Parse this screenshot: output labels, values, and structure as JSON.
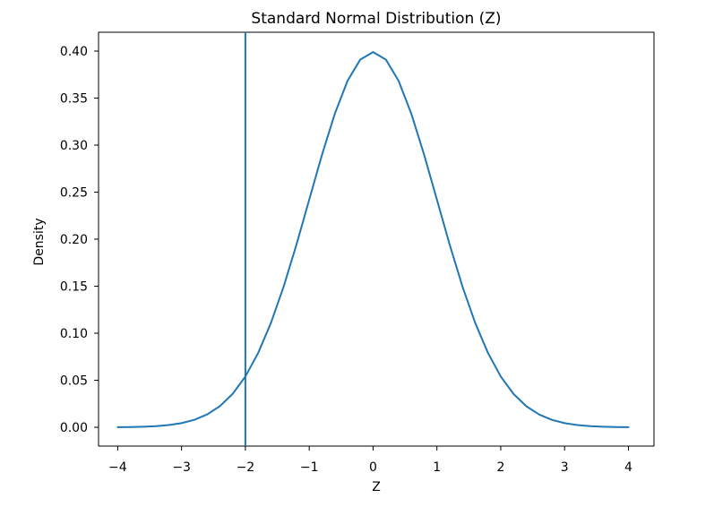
{
  "chart_data": {
    "type": "line",
    "title": "Standard Normal Distribution (Z)",
    "xlabel": "Z",
    "ylabel": "Density",
    "xlim": [
      -4.3,
      4.4
    ],
    "ylim": [
      -0.02,
      0.42
    ],
    "xticks": [
      {
        "value": -4,
        "label": "−4"
      },
      {
        "value": -3,
        "label": "−3"
      },
      {
        "value": -2,
        "label": "−2"
      },
      {
        "value": -1,
        "label": "−1"
      },
      {
        "value": 0,
        "label": "0"
      },
      {
        "value": 1,
        "label": "1"
      },
      {
        "value": 2,
        "label": "2"
      },
      {
        "value": 3,
        "label": "3"
      },
      {
        "value": 4,
        "label": "4"
      }
    ],
    "yticks": [
      {
        "value": 0.0,
        "label": "0.00"
      },
      {
        "value": 0.05,
        "label": "0.05"
      },
      {
        "value": 0.1,
        "label": "0.10"
      },
      {
        "value": 0.15,
        "label": "0.15"
      },
      {
        "value": 0.2,
        "label": "0.20"
      },
      {
        "value": 0.25,
        "label": "0.25"
      },
      {
        "value": 0.3,
        "label": "0.30"
      },
      {
        "value": 0.35,
        "label": "0.35"
      },
      {
        "value": 0.4,
        "label": "0.40"
      }
    ],
    "grid": false,
    "series": [
      {
        "color": "#1f77b4",
        "x": [
          -4.0,
          -3.8,
          -3.6,
          -3.4,
          -3.2,
          -3.0,
          -2.8,
          -2.6,
          -2.4,
          -2.2,
          -2.0,
          -1.8,
          -1.6,
          -1.4,
          -1.2,
          -1.0,
          -0.8,
          -0.6,
          -0.4,
          -0.2,
          0.0,
          0.2,
          0.4,
          0.6,
          0.8,
          1.0,
          1.2,
          1.4,
          1.6,
          1.8,
          2.0,
          2.2,
          2.4,
          2.6,
          2.8,
          3.0,
          3.2,
          3.4,
          3.6,
          3.8,
          4.0
        ],
        "y": [
          0.0001,
          0.0003,
          0.0006,
          0.0012,
          0.0024,
          0.0044,
          0.0079,
          0.0136,
          0.0224,
          0.0355,
          0.054,
          0.079,
          0.1109,
          0.1497,
          0.1942,
          0.242,
          0.2897,
          0.3332,
          0.3683,
          0.391,
          0.3989,
          0.391,
          0.3683,
          0.3332,
          0.2897,
          0.242,
          0.1942,
          0.1497,
          0.1109,
          0.079,
          0.054,
          0.0355,
          0.0224,
          0.0136,
          0.0079,
          0.0044,
          0.0024,
          0.0012,
          0.0006,
          0.0003,
          0.0001
        ]
      }
    ],
    "vlines": [
      {
        "x": -2,
        "color": "#1f77b4"
      }
    ]
  }
}
